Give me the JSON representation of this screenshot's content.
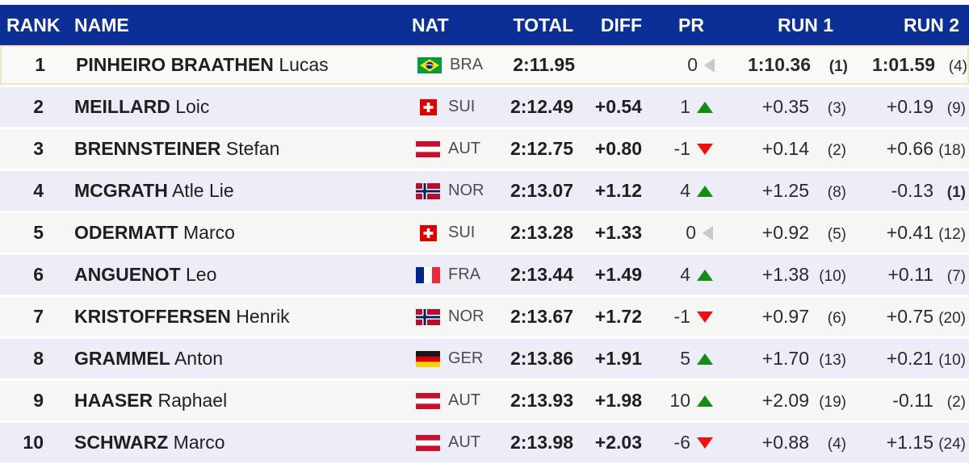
{
  "header": {
    "rank": "RANK",
    "name": "NAME",
    "nat": "NAT",
    "total": "TOTAL",
    "diff": "DIFF",
    "pr": "PR",
    "run1": "RUN 1",
    "run2": "RUN 2"
  },
  "colors": {
    "header_bg": "#0b2f94",
    "header_text": "#ffffff",
    "leader_bg": "#f9f9f7",
    "leader_border": "#f2e4bc",
    "row_base": "#f6f6f4",
    "row_alt": "#ecedf6",
    "up_green": "#168c16",
    "down_red": "#ee1111",
    "neutral_gray": "#c9c9c9"
  },
  "rows": [
    {
      "rank": "1",
      "surname": "PINHEIRO BRAATHEN",
      "given": "Lucas",
      "nat": "BRA",
      "flag": "bra",
      "total": "2:11.95",
      "diff": "",
      "pr": "0",
      "pr_dir": "same",
      "run1": "1:10.36",
      "run1_pos": "(1)",
      "run1_bold": true,
      "run1_pos_bold": true,
      "run2": "1:01.59",
      "run2_pos": "(4)",
      "run2_bold": true,
      "run2_pos_bold": false,
      "leader": true
    },
    {
      "rank": "2",
      "surname": "MEILLARD",
      "given": "Loic",
      "nat": "SUI",
      "flag": "sui",
      "total": "2:12.49",
      "diff": "+0.54",
      "pr": "1",
      "pr_dir": "up",
      "run1": "+0.35",
      "run1_pos": "(3)",
      "run1_bold": false,
      "run1_pos_bold": false,
      "run2": "+0.19",
      "run2_pos": "(9)",
      "run2_bold": false,
      "run2_pos_bold": false,
      "leader": false
    },
    {
      "rank": "3",
      "surname": "BRENNSTEINER",
      "given": "Stefan",
      "nat": "AUT",
      "flag": "aut",
      "total": "2:12.75",
      "diff": "+0.80",
      "pr": "-1",
      "pr_dir": "down",
      "run1": "+0.14",
      "run1_pos": "(2)",
      "run1_bold": false,
      "run1_pos_bold": false,
      "run2": "+0.66",
      "run2_pos": "(18)",
      "run2_bold": false,
      "run2_pos_bold": false,
      "leader": false
    },
    {
      "rank": "4",
      "surname": "MCGRATH",
      "given": "Atle Lie",
      "nat": "NOR",
      "flag": "nor",
      "total": "2:13.07",
      "diff": "+1.12",
      "pr": "4",
      "pr_dir": "up",
      "run1": "+1.25",
      "run1_pos": "(8)",
      "run1_bold": false,
      "run1_pos_bold": false,
      "run2": "-0.13",
      "run2_pos": "(1)",
      "run2_bold": false,
      "run2_pos_bold": true,
      "leader": false
    },
    {
      "rank": "5",
      "surname": "ODERMATT",
      "given": "Marco",
      "nat": "SUI",
      "flag": "sui",
      "total": "2:13.28",
      "diff": "+1.33",
      "pr": "0",
      "pr_dir": "same",
      "run1": "+0.92",
      "run1_pos": "(5)",
      "run1_bold": false,
      "run1_pos_bold": false,
      "run2": "+0.41",
      "run2_pos": "(12)",
      "run2_bold": false,
      "run2_pos_bold": false,
      "leader": false
    },
    {
      "rank": "6",
      "surname": "ANGUENOT",
      "given": "Leo",
      "nat": "FRA",
      "flag": "fra",
      "total": "2:13.44",
      "diff": "+1.49",
      "pr": "4",
      "pr_dir": "up",
      "run1": "+1.38",
      "run1_pos": "(10)",
      "run1_bold": false,
      "run1_pos_bold": false,
      "run2": "+0.11",
      "run2_pos": "(7)",
      "run2_bold": false,
      "run2_pos_bold": false,
      "leader": false
    },
    {
      "rank": "7",
      "surname": "KRISTOFFERSEN",
      "given": "Henrik",
      "nat": "NOR",
      "flag": "nor",
      "total": "2:13.67",
      "diff": "+1.72",
      "pr": "-1",
      "pr_dir": "down",
      "run1": "+0.97",
      "run1_pos": "(6)",
      "run1_bold": false,
      "run1_pos_bold": false,
      "run2": "+0.75",
      "run2_pos": "(20)",
      "run2_bold": false,
      "run2_pos_bold": false,
      "leader": false
    },
    {
      "rank": "8",
      "surname": "GRAMMEL",
      "given": "Anton",
      "nat": "GER",
      "flag": "ger",
      "total": "2:13.86",
      "diff": "+1.91",
      "pr": "5",
      "pr_dir": "up",
      "run1": "+1.70",
      "run1_pos": "(13)",
      "run1_bold": false,
      "run1_pos_bold": false,
      "run2": "+0.21",
      "run2_pos": "(10)",
      "run2_bold": false,
      "run2_pos_bold": false,
      "leader": false
    },
    {
      "rank": "9",
      "surname": "HAASER",
      "given": "Raphael",
      "nat": "AUT",
      "flag": "aut",
      "total": "2:13.93",
      "diff": "+1.98",
      "pr": "10",
      "pr_dir": "up",
      "run1": "+2.09",
      "run1_pos": "(19)",
      "run1_bold": false,
      "run1_pos_bold": false,
      "run2": "-0.11",
      "run2_pos": "(2)",
      "run2_bold": false,
      "run2_pos_bold": false,
      "leader": false
    },
    {
      "rank": "10",
      "surname": "SCHWARZ",
      "given": "Marco",
      "nat": "AUT",
      "flag": "aut",
      "total": "2:13.98",
      "diff": "+2.03",
      "pr": "-6",
      "pr_dir": "down",
      "run1": "+0.88",
      "run1_pos": "(4)",
      "run1_bold": false,
      "run1_pos_bold": false,
      "run2": "+1.15",
      "run2_pos": "(24)",
      "run2_bold": false,
      "run2_pos_bold": false,
      "leader": false
    }
  ]
}
